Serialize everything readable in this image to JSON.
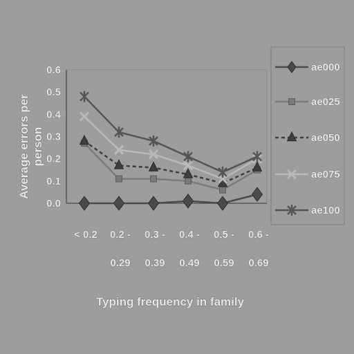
{
  "chart_data": {
    "type": "line",
    "title": "",
    "xlabel": "Typing frequency in family",
    "ylabel_lines": [
      "Average errors per",
      "person"
    ],
    "categories": [
      [
        "< 0.2",
        ""
      ],
      [
        "0.2 -",
        "0.29"
      ],
      [
        "0.3 -",
        "0.39"
      ],
      [
        "0.4 -",
        "0.49"
      ],
      [
        "0.5 -",
        "0.59"
      ],
      [
        "0.6 -",
        "0.69"
      ]
    ],
    "ylim": [
      0.0,
      0.6
    ],
    "yticks": [
      "0.0",
      "0.1",
      "0.2",
      "0.3",
      "0.4",
      "0.5",
      "0.6"
    ],
    "grid": false,
    "legend_position": "right",
    "series": [
      {
        "name": "ae000",
        "marker": "diamond",
        "dash": "solid",
        "color": "#4a4a4a",
        "values": [
          0.0,
          0.0,
          0.0,
          0.01,
          0.0,
          0.04
        ]
      },
      {
        "name": "ae025",
        "marker": "square",
        "dash": "solid",
        "color": "#7a7a7a",
        "values": [
          0.27,
          0.11,
          0.11,
          0.1,
          0.06,
          0.15
        ]
      },
      {
        "name": "ae050",
        "marker": "triangle",
        "dash": "dashed",
        "color": "#3e3e3e",
        "values": [
          0.28,
          0.17,
          0.16,
          0.13,
          0.09,
          0.16
        ]
      },
      {
        "name": "ae075",
        "marker": "x",
        "dash": "solid",
        "color": "#b9b9b9",
        "values": [
          0.39,
          0.24,
          0.22,
          0.17,
          0.11,
          0.2
        ]
      },
      {
        "name": "ae100",
        "marker": "star",
        "dash": "solid",
        "color": "#555555",
        "values": [
          0.48,
          0.32,
          0.28,
          0.21,
          0.14,
          0.21
        ]
      }
    ]
  }
}
